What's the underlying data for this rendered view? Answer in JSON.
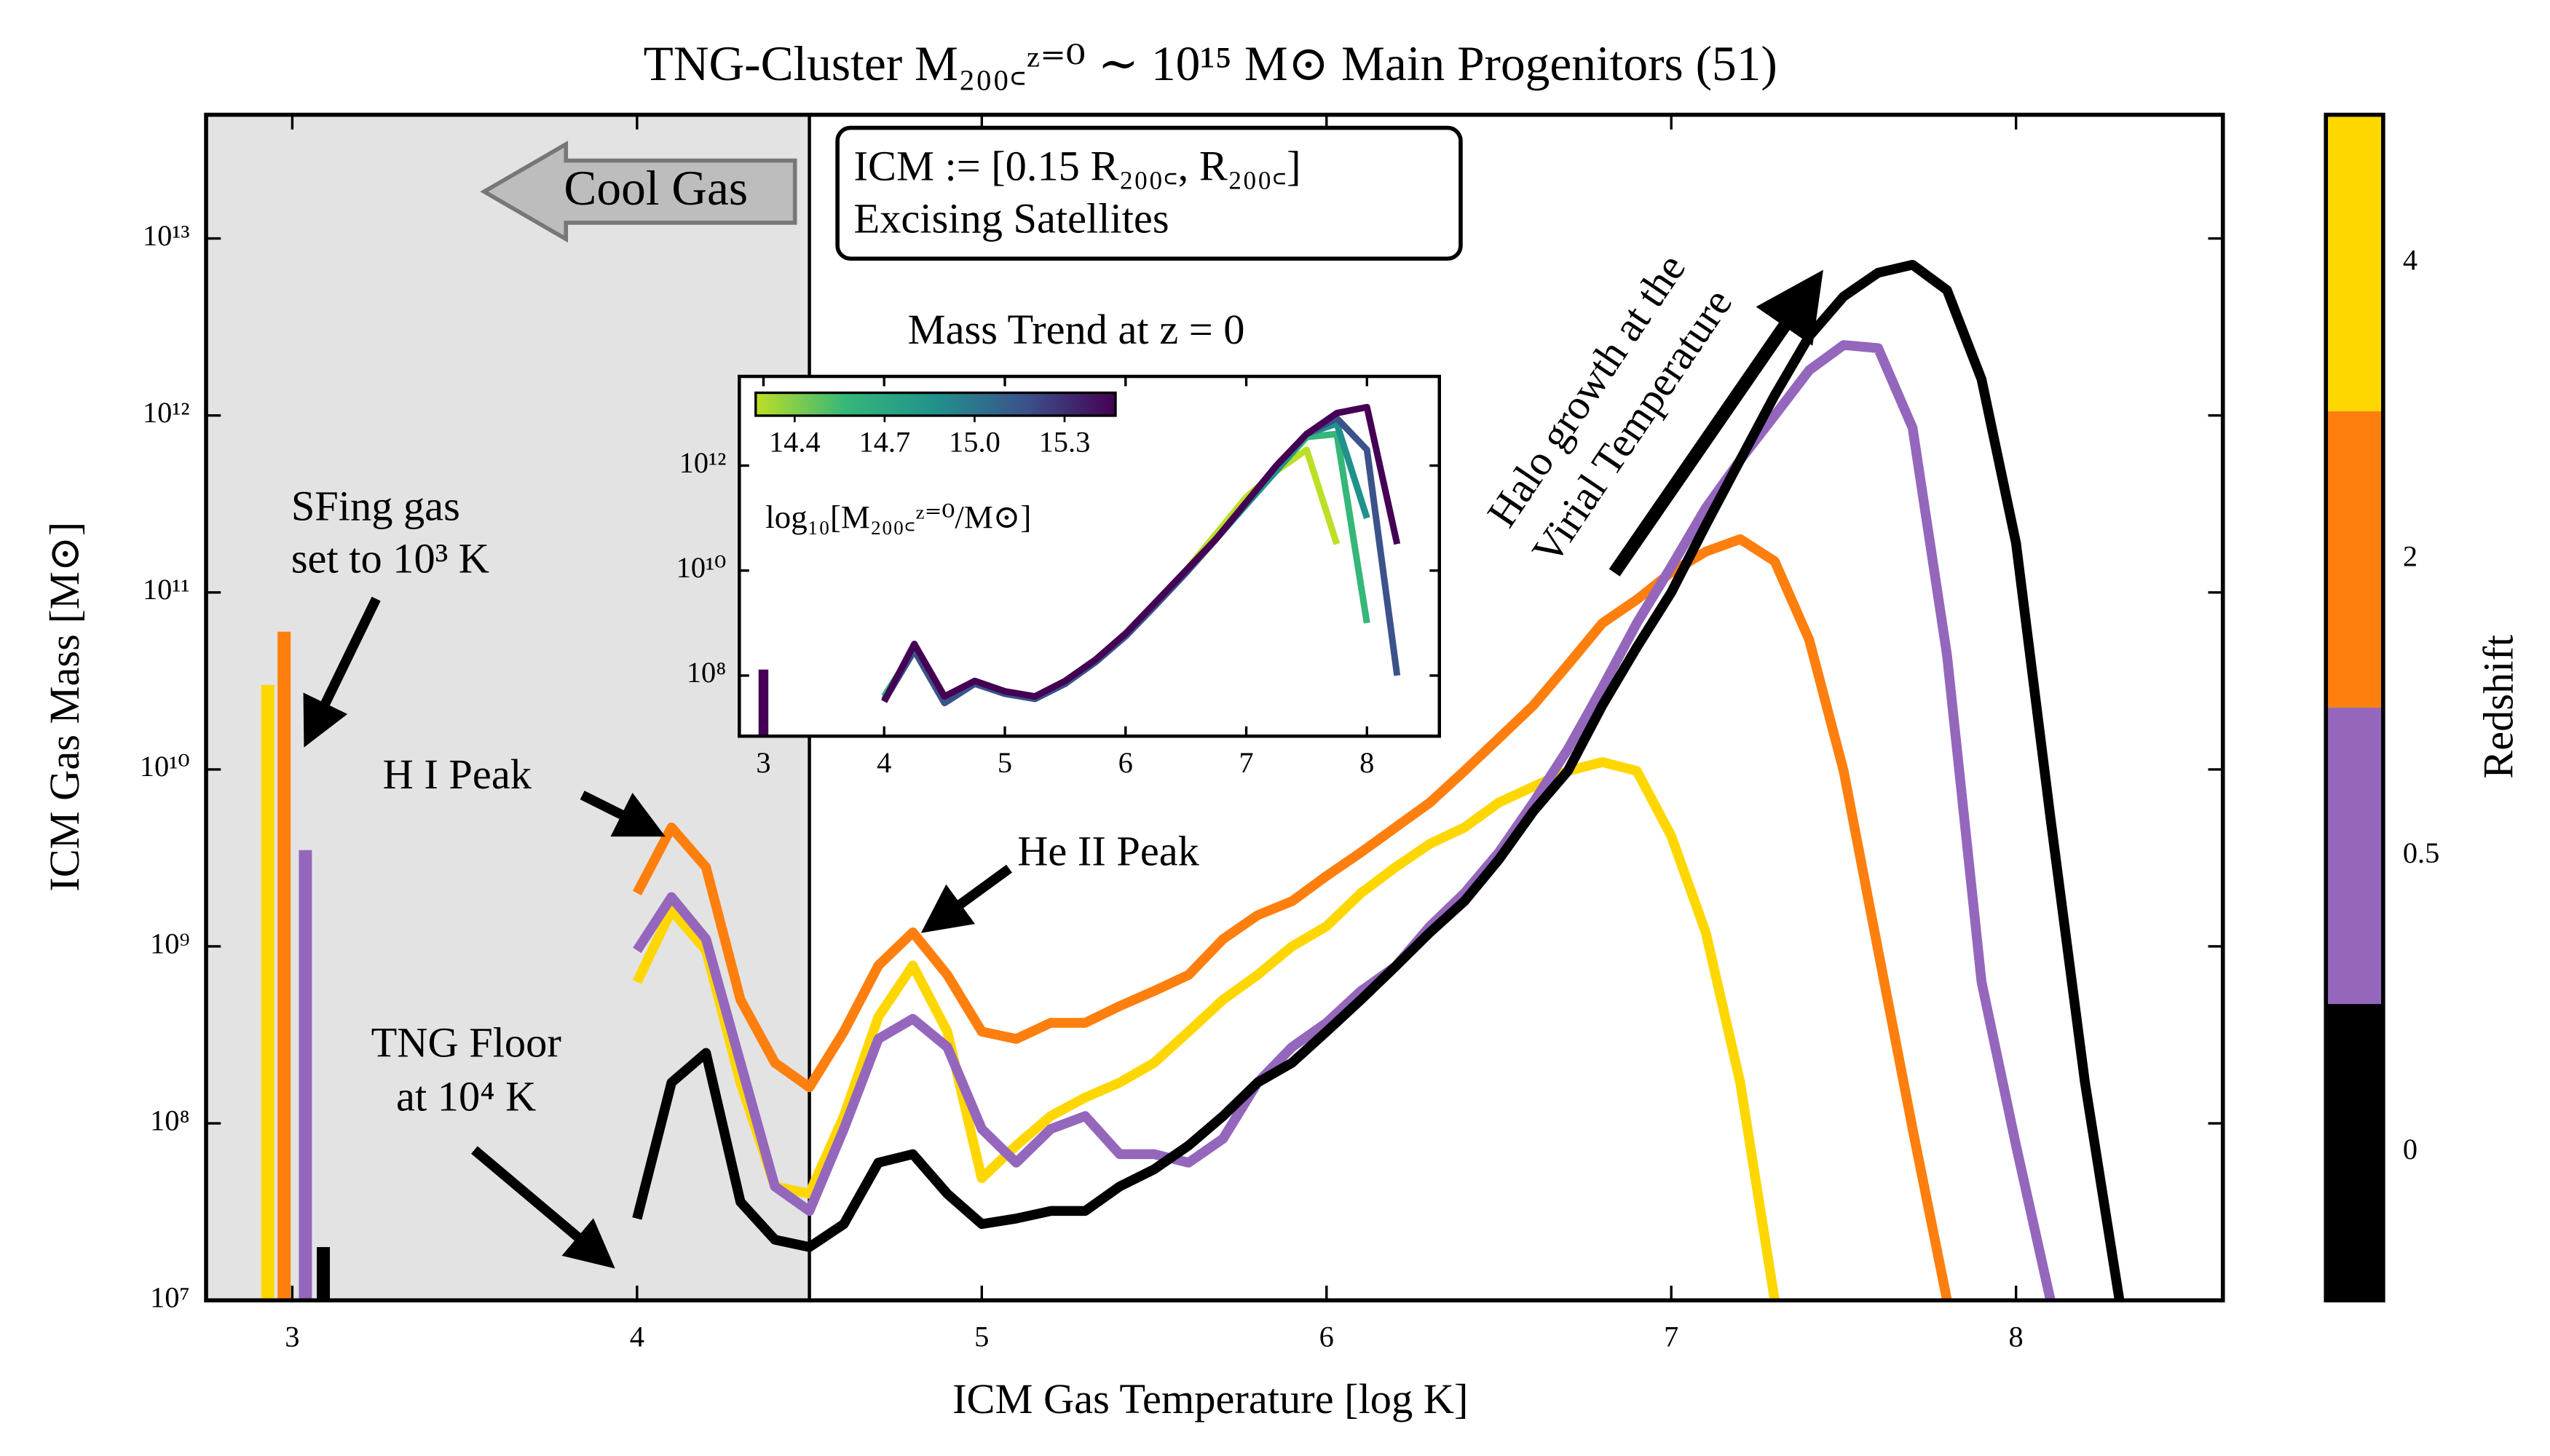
{
  "chart_data": [
    {
      "type": "line",
      "title": "TNG-Cluster M₂₀₀꜀ᶻ⁼⁰ ∼ 10¹⁵ M⊙ Main Progenitors (51)",
      "x_label": "ICM Gas Temperature [log K]",
      "y_label": "ICM Gas Mass [M⊙]",
      "xlim": [
        2.75,
        8.6
      ],
      "xticks": [
        3,
        4,
        5,
        6,
        7,
        8
      ],
      "ylim": [
        10000000.0,
        50000000000000.0
      ],
      "y_scale": "log",
      "yticks": [
        {
          "value": 10000000.0,
          "label": "10⁷"
        },
        {
          "value": 100000000.0,
          "label": "10⁸"
        },
        {
          "value": 1000000000.0,
          "label": "10⁹"
        },
        {
          "value": 10000000000.0,
          "label": "10¹⁰"
        },
        {
          "value": 100000000000.0,
          "label": "10¹¹"
        },
        {
          "value": 1000000000000.0,
          "label": "10¹²"
        },
        {
          "value": 10000000000000.0,
          "label": "10¹³"
        }
      ],
      "shade_below": 4.5,
      "sfing_x": 3,
      "x": [
        4.0,
        4.1,
        4.2,
        4.3,
        4.4,
        4.5,
        4.6,
        4.7,
        4.8,
        4.9,
        5.0,
        5.1,
        5.2,
        5.3,
        5.4,
        5.5,
        5.6,
        5.7,
        5.8,
        5.9,
        6.0,
        6.1,
        6.2,
        6.3,
        6.4,
        6.5,
        6.6,
        6.7,
        6.8,
        6.9,
        7.0,
        7.1,
        7.2,
        7.3,
        7.4,
        7.5,
        7.6,
        7.7,
        7.8,
        7.9,
        8.0,
        8.1,
        8.2,
        8.3
      ],
      "series": [
        {
          "redshift": 0,
          "color": "#000000",
          "sfing_gas": 20000000.0,
          "values": [
            29000000.0,
            170000000.0,
            250000000.0,
            36000000.0,
            22000000.0,
            20000000.0,
            27000000.0,
            60000000.0,
            67000000.0,
            40000000.0,
            27000000.0,
            29000000.0,
            32000000.0,
            32000000.0,
            44000000.0,
            55000000.0,
            75000000.0,
            110000000.0,
            170000000.0,
            220000000.0,
            330000000.0,
            500000000.0,
            770000000.0,
            1200000000.0,
            1800000000.0,
            3100000000.0,
            5800000000.0,
            9800000000.0,
            23000000000.0,
            49000000000.0,
            100000000000.0,
            240000000000.0,
            560000000000.0,
            1300000000000.0,
            2800000000000.0,
            4700000000000.0,
            6400000000000.0,
            7100000000000.0,
            5100000000000.0,
            1600000000000.0,
            190000000000.0,
            5300000000.0,
            170000000.0,
            10000000.0
          ]
        },
        {
          "redshift": 0.5,
          "color": "#9467bd",
          "sfing_gas": 3500000000.0,
          "values": [
            950000000.0,
            1900000000.0,
            1100000000.0,
            220000000.0,
            44000000.0,
            32000000.0,
            93000000.0,
            300000000.0,
            390000000.0,
            270000000.0,
            93000000.0,
            60000000.0,
            93000000.0,
            110000000.0,
            67000000.0,
            67000000.0,
            60000000.0,
            82000000.0,
            170000000.0,
            270000000.0,
            370000000.0,
            560000000.0,
            770000000.0,
            1300000000.0,
            2000000000.0,
            3400000000.0,
            6500000000.0,
            13000000000.0,
            29000000000.0,
            67000000000.0,
            140000000000.0,
            300000000000.0,
            560000000000.0,
            1000000000000.0,
            1800000000000.0,
            2500000000000.0,
            2400000000000.0,
            850000000000.0,
            44000000000.0,
            630000000.0,
            75000000.0,
            10000000.0,
            null,
            null
          ]
        },
        {
          "redshift": 2,
          "color": "#ff7f0e",
          "sfing_gas": 60000000000.0,
          "values": [
            2000000000.0,
            4700000000.0,
            2800000000.0,
            500000000.0,
            220000000.0,
            160000000.0,
            330000000.0,
            780000000.0,
            1200000000.0,
            690000000.0,
            330000000.0,
            300000000.0,
            370000000.0,
            370000000.0,
            460000000.0,
            560000000.0,
            690000000.0,
            1100000000.0,
            1500000000.0,
            1800000000.0,
            2500000000.0,
            3400000000.0,
            4700000000.0,
            6500000000.0,
            9800000000.0,
            15000000000.0,
            23000000000.0,
            39000000000.0,
            67000000000.0,
            91000000000.0,
            130000000000.0,
            170000000000.0,
            200000000000.0,
            150000000000.0,
            54000000000.0,
            9800000000.0,
            950000000.0,
            93000000.0,
            10000000.0,
            null,
            null,
            null,
            null,
            null
          ]
        },
        {
          "redshift": 4,
          "color": "#ffd700",
          "sfing_gas": 30000000000.0,
          "values": [
            630000000.0,
            1600000000.0,
            950000000.0,
            170000000.0,
            44000000.0,
            40000000.0,
            110000000.0,
            400000000.0,
            780000000.0,
            330000000.0,
            49000000.0,
            75000000.0,
            110000000.0,
            140000000.0,
            170000000.0,
            220000000.0,
            330000000.0,
            500000000.0,
            690000000.0,
            1000000000.0,
            1300000000.0,
            2000000000.0,
            2800000000.0,
            3800000000.0,
            4700000000.0,
            6500000000.0,
            8000000000.0,
            9800000000.0,
            11000000000.0,
            9800000000.0,
            4200000000.0,
            1200000000.0,
            170000000.0,
            10000000.0,
            null,
            null,
            null,
            null,
            null,
            null,
            null,
            null,
            null,
            null
          ]
        }
      ],
      "colorbar": {
        "label": "Redshift"
      },
      "annotations": {
        "cool_gas": "Cool Gas",
        "icm_def": "ICM := [0.15 R₂₀₀꜀,  R₂₀₀꜀]",
        "excising": "Excising Satellites",
        "halo_1": "Halo growth at the",
        "halo_2": "Virial Temperature",
        "sfing_1": "SFing gas",
        "sfing_2": "set to 10³ K",
        "hi_peak": "H I Peak",
        "heii_peak": "He II Peak",
        "floor_1": "TNG Floor",
        "floor_2": "at 10⁴ K"
      }
    },
    {
      "type": "line",
      "title": "Mass Trend at z = 0",
      "xlim": [
        2.8,
        8.6
      ],
      "xticks": [
        3,
        4,
        5,
        6,
        7,
        8
      ],
      "ylim": [
        7000000.0,
        50000000000000.0
      ],
      "y_scale": "log",
      "yticks": [
        {
          "value": 100000000.0,
          "label": "10⁸"
        },
        {
          "value": 10000000000.0,
          "label": "10¹⁰"
        },
        {
          "value": 1000000000000.0,
          "label": "10¹²"
        }
      ],
      "sfing_x": 3,
      "x": [
        4,
        4.25,
        4.5,
        4.75,
        5,
        5.25,
        5.5,
        5.75,
        6,
        6.25,
        6.5,
        6.75,
        7,
        7.25,
        7.5,
        7.75,
        8,
        8.25,
        8.5
      ],
      "series": [
        {
          "color": "#bddf26",
          "values": [
            40000000.0,
            320000000.0,
            32000000.0,
            79000000.0,
            50000000.0,
            40000000.0,
            79000000.0,
            200000000.0,
            630000000.0,
            2500000000.0,
            10000000000.0,
            50000000000.0,
            250000000000.0,
            790000000000.0,
            2000000000000.0,
            32000000000.0,
            null,
            null,
            null
          ]
        },
        {
          "color": "#35b779",
          "values": [
            40000000.0,
            320000000.0,
            32000000.0,
            79000000.0,
            50000000.0,
            40000000.0,
            79000000.0,
            200000000.0,
            630000000.0,
            2500000000.0,
            10000000000.0,
            40000000000.0,
            200000000000.0,
            800000000000.0,
            3500000000000.0,
            4000000000000.0,
            1000000000.0,
            null,
            null
          ]
        },
        {
          "color": "#21918c",
          "values": [
            35000000.0,
            300000000.0,
            30000000.0,
            70000000.0,
            45000000.0,
            36000000.0,
            70000000.0,
            180000000.0,
            560000000.0,
            2200000000.0,
            9000000000.0,
            40000000000.0,
            180000000000.0,
            800000000000.0,
            4000000000000.0,
            6300000000000.0,
            100000000000.0,
            null,
            null
          ]
        },
        {
          "color": "#3b528b",
          "values": [
            33000000.0,
            300000000.0,
            30000000.0,
            70000000.0,
            45000000.0,
            36000000.0,
            70000000.0,
            180000000.0,
            560000000.0,
            2200000000.0,
            9000000000.0,
            40000000000.0,
            200000000000.0,
            1000000000000.0,
            4000000000000.0,
            8000000000000.0,
            2000000000000.0,
            100000000.0,
            null
          ]
        },
        {
          "color": "#440154",
          "sfing_gas": 130000000.0,
          "values": [
            32000000.0,
            400000000.0,
            40000000.0,
            79000000.0,
            50000000.0,
            40000000.0,
            79000000.0,
            200000000.0,
            630000000.0,
            2500000000.0,
            10000000000.0,
            40000000000.0,
            200000000000.0,
            1000000000000.0,
            4000000000000.0,
            10000000000000.0,
            13000000000000.0,
            32000000000.0,
            null
          ]
        }
      ],
      "colorbar": {
        "label": "log₁₀[M₂₀₀꜀ᶻ⁼⁰/M⊙]",
        "lim": [
          14.27,
          15.47
        ],
        "ticks": [
          14.4,
          14.7,
          {
            "value": 15,
            "label": "15.0"
          },
          15.3
        ]
      }
    }
  ]
}
